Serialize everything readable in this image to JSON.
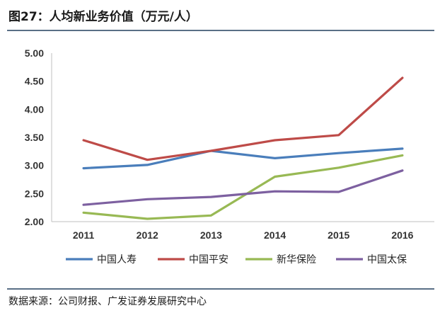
{
  "figure": {
    "title": "图27：人均新业务价值（万元/人）",
    "source": "数据来源：公司财报、广发证券发展研究中心"
  },
  "chart_data": {
    "type": "line",
    "title": "人均新业务价值（万元/人）",
    "xlabel": "",
    "ylabel": "",
    "categories": [
      "2011",
      "2012",
      "2013",
      "2014",
      "2015",
      "2016"
    ],
    "ylim": [
      2.0,
      5.0
    ],
    "yticks": [
      "2.00",
      "2.50",
      "3.00",
      "3.50",
      "4.00",
      "4.50",
      "5.00"
    ],
    "grid": false,
    "legend_position": "bottom",
    "series": [
      {
        "name": "中国人寿",
        "color": "#4a7ebb",
        "values": [
          2.95,
          3.01,
          3.26,
          3.13,
          3.22,
          3.3
        ]
      },
      {
        "name": "中国平安",
        "color": "#be4b48",
        "values": [
          3.45,
          3.1,
          3.26,
          3.45,
          3.54,
          4.56
        ]
      },
      {
        "name": "新华保险",
        "color": "#98b954",
        "values": [
          2.16,
          2.05,
          2.11,
          2.8,
          2.96,
          3.18
        ]
      },
      {
        "name": "中国太保",
        "color": "#7d60a0",
        "values": [
          2.3,
          2.4,
          2.44,
          2.54,
          2.53,
          2.91
        ]
      }
    ]
  }
}
